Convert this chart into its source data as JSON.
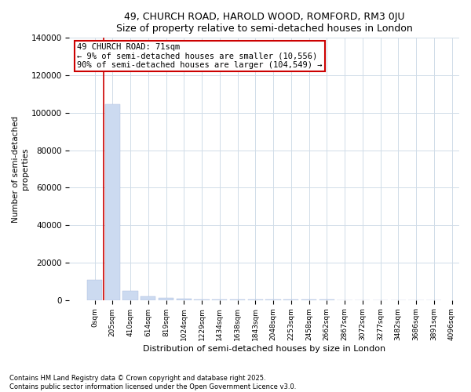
{
  "title": "49, CHURCH ROAD, HAROLD WOOD, ROMFORD, RM3 0JU",
  "subtitle": "Size of property relative to semi-detached houses in London",
  "xlabel": "Distribution of semi-detached houses by size in London",
  "ylabel": "Number of semi-detached\nproperties",
  "property_sqm_label": "49 CHURCH ROAD: 71sqm",
  "annotation_line1": "← 9% of semi-detached houses are smaller (10,556)",
  "annotation_line2": "90% of semi-detached houses are larger (104,549) →",
  "bar_color": "#ccdaf0",
  "annotation_box_color": "#cc0000",
  "ylim": [
    0,
    140000
  ],
  "yticks": [
    0,
    20000,
    40000,
    60000,
    80000,
    100000,
    120000,
    140000
  ],
  "bin_labels": [
    "0sqm",
    "205sqm",
    "410sqm",
    "614sqm",
    "819sqm",
    "1024sqm",
    "1229sqm",
    "1434sqm",
    "1638sqm",
    "1843sqm",
    "2048sqm",
    "2253sqm",
    "2458sqm",
    "2662sqm",
    "2867sqm",
    "3072sqm",
    "3277sqm",
    "3482sqm",
    "3686sqm",
    "3891sqm",
    "4096sqm"
  ],
  "bar_heights": [
    10556,
    104549,
    5000,
    2000,
    1200,
    700,
    400,
    250,
    180,
    130,
    90,
    70,
    55,
    45,
    35,
    28,
    22,
    18,
    14,
    11
  ],
  "red_line_x": 0.5,
  "footer_line1": "Contains HM Land Registry data © Crown copyright and database right 2025.",
  "footer_line2": "Contains public sector information licensed under the Open Government Licence v3.0.",
  "bg_color": "#ffffff",
  "grid_color": "#d0dce8"
}
